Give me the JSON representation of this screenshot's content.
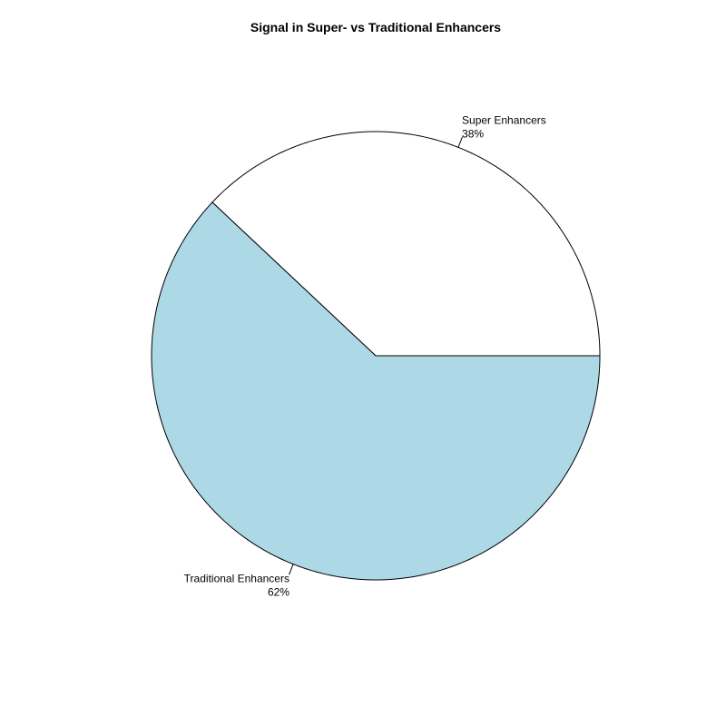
{
  "chart_data": {
    "type": "pie",
    "title": "Signal in Super- vs Traditional Enhancers",
    "slices": [
      {
        "label": "Super Enhancers",
        "percent_label": "38%",
        "value": 38,
        "color": "#ffffff"
      },
      {
        "label": "Traditional Enhancers",
        "percent_label": "62%",
        "value": 62,
        "color": "#add8e6"
      }
    ],
    "start_angle_deg": 0,
    "direction": "counterclockwise",
    "border_color": "#000000"
  }
}
